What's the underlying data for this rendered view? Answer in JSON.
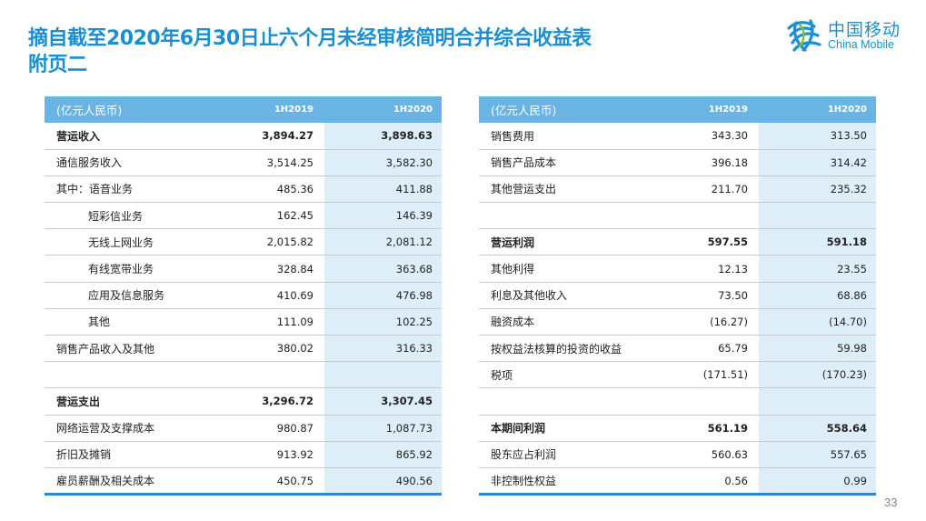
{
  "header": {
    "title_line1": "摘自截至2020年6月30日止六个月未经审核简明合并综合收益表",
    "title_line2": "附页二"
  },
  "logo": {
    "cn": "中国移动",
    "en": "China Mobile",
    "color": "#1a8fd1"
  },
  "left_table": {
    "headers": [
      "(亿元人民币)",
      "1H2019",
      "1H2020"
    ],
    "rows": [
      {
        "label": "营运收入",
        "v2019": "3,894.27",
        "v2020": "3,898.63",
        "bold": true,
        "indent": 0
      },
      {
        "label": "通信服务收入",
        "v2019": "3,514.25",
        "v2020": "3,582.30",
        "bold": false,
        "indent": 0
      },
      {
        "label": "其中：语音业务",
        "v2019": "485.36",
        "v2020": "411.88",
        "bold": false,
        "indent": 0
      },
      {
        "label": "短彩信业务",
        "v2019": "162.45",
        "v2020": "146.39",
        "bold": false,
        "indent": 1
      },
      {
        "label": "无线上网业务",
        "v2019": "2,015.82",
        "v2020": "2,081.12",
        "bold": false,
        "indent": 1
      },
      {
        "label": "有线宽带业务",
        "v2019": "328.84",
        "v2020": "363.68",
        "bold": false,
        "indent": 1
      },
      {
        "label": "应用及信息服务",
        "v2019": "410.69",
        "v2020": "476.98",
        "bold": false,
        "indent": 1
      },
      {
        "label": "其他",
        "v2019": "111.09",
        "v2020": "102.25",
        "bold": false,
        "indent": 1
      },
      {
        "label": "销售产品收入及其他",
        "v2019": "380.02",
        "v2020": "316.33",
        "bold": false,
        "indent": 0
      },
      {
        "label": "",
        "v2019": "",
        "v2020": "",
        "bold": false,
        "indent": 0
      },
      {
        "label": "营运支出",
        "v2019": "3,296.72",
        "v2020": "3,307.45",
        "bold": true,
        "indent": 0
      },
      {
        "label": "网络运营及支撑成本",
        "v2019": "980.87",
        "v2020": "1,087.73",
        "bold": false,
        "indent": 0
      },
      {
        "label": "折旧及摊销",
        "v2019": "913.92",
        "v2020": "865.92",
        "bold": false,
        "indent": 0
      },
      {
        "label": "雇员薪酬及相关成本",
        "v2019": "450.75",
        "v2020": "490.56",
        "bold": false,
        "indent": 0
      }
    ]
  },
  "right_table": {
    "headers": [
      "(亿元人民币)",
      "1H2019",
      "1H2020"
    ],
    "rows": [
      {
        "label": "销售费用",
        "v2019": "343.30",
        "v2020": "313.50",
        "bold": false
      },
      {
        "label": "销售产品成本",
        "v2019": "396.18",
        "v2020": "314.42",
        "bold": false
      },
      {
        "label": "其他营运支出",
        "v2019": "211.70",
        "v2020": "235.32",
        "bold": false
      },
      {
        "label": "",
        "v2019": "",
        "v2020": "",
        "bold": false
      },
      {
        "label": "营运利润",
        "v2019": "597.55",
        "v2020": "591.18",
        "bold": true
      },
      {
        "label": "其他利得",
        "v2019": "12.13",
        "v2020": "23.55",
        "bold": false
      },
      {
        "label": "利息及其他收入",
        "v2019": "73.50",
        "v2020": "68.86",
        "bold": false
      },
      {
        "label": "融资成本",
        "v2019": "(16.27)",
        "v2020": "(14.70)",
        "bold": false
      },
      {
        "label": "按权益法核算的投资的收益",
        "v2019": "65.79",
        "v2020": "59.98",
        "bold": false
      },
      {
        "label": "税项",
        "v2019": "(171.51)",
        "v2020": "(170.23)",
        "bold": false
      },
      {
        "label": "",
        "v2019": "",
        "v2020": "",
        "bold": false
      },
      {
        "label": "本期间利润",
        "v2019": "561.19",
        "v2020": "558.64",
        "bold": true
      },
      {
        "label": "股东应占利润",
        "v2019": "560.63",
        "v2020": "557.65",
        "bold": false
      },
      {
        "label": "非控制性权益",
        "v2019": "0.56",
        "v2020": "0.99",
        "bold": false
      }
    ]
  },
  "footer": {
    "page_number": "33"
  },
  "colors": {
    "title": "#1a8fd1",
    "header_bg": "#6ab4e3",
    "highlight_col": "#deeef9",
    "border": "#2f86c9"
  }
}
